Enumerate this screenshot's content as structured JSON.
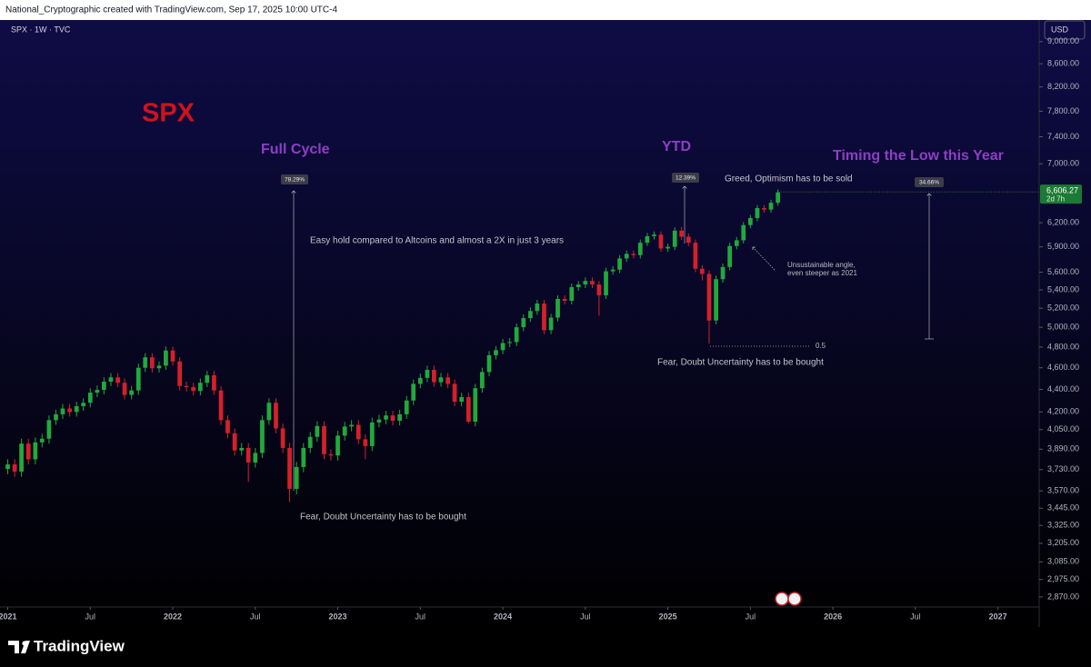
{
  "header": "National_Cryptographic created with TradingView.com, Sep 17, 2025 10:00 UTC-4",
  "brand": "TradingView",
  "chart_data": {
    "type": "candlestick",
    "symbol": "SPX · 1W · TVC",
    "currency": "USD",
    "title": "SPX",
    "annotations": {
      "full_cycle": "Full Cycle",
      "ytd": "YTD",
      "timing": "Timing the Low this Year",
      "full_cycle_pct": "78.29%",
      "ytd_pct": "12.39%",
      "timing_pct": "34.66%",
      "easy_hold": "Easy hold compared to Altcoins and almost a 2X in  just 3 years",
      "greed": "Greed, Optimism has to be sold",
      "unsustainable_1": "Unsustainable angle,",
      "unsustainable_2": "even steeper as 2021",
      "fear_2022": "Fear, Doubt Uncertainty has to be bought",
      "fear_2025": "Fear, Doubt Uncertainty has to be bought",
      "fib": "0.5"
    },
    "last_price": {
      "value": 6606.27,
      "label": "6,606.27"
    },
    "countdown": "2d 7h",
    "log_scale": true,
    "up_color": "#22a93c",
    "down_color": "#d3212b",
    "xlim": [
      2020.953,
      2027.25
    ],
    "xticks": [
      2021,
      {
        "value": 2021.5,
        "label": "Jul"
      },
      2022,
      {
        "value": 2022.5,
        "label": "Jul"
      },
      2023,
      {
        "value": 2023.5,
        "label": "Jul"
      },
      2024,
      {
        "value": 2024.5,
        "label": "Jul"
      },
      2025,
      {
        "value": 2025.5,
        "label": "Jul"
      },
      2026,
      {
        "value": 2026.5,
        "label": "Jul"
      },
      2027
    ],
    "ylim": [
      2811,
      9306
    ],
    "yticks": [
      {
        "value": 9000,
        "label": "9,000.00"
      },
      {
        "value": 8600,
        "label": "8,600.00"
      },
      {
        "value": 8200,
        "label": "8,200.00"
      },
      {
        "value": 7800,
        "label": "7,800.00"
      },
      {
        "value": 7400,
        "label": "7,400.00"
      },
      {
        "value": 7000,
        "label": "7,000.00"
      },
      {
        "value": 6200,
        "label": "6,200.00"
      },
      {
        "value": 5900,
        "label": "5,900.00"
      },
      {
        "value": 5600,
        "label": "5,600.00"
      },
      {
        "value": 5400,
        "label": "5,400.00"
      },
      {
        "value": 5200,
        "label": "5,200.00"
      },
      {
        "value": 5000,
        "label": "5,000.00"
      },
      {
        "value": 4800,
        "label": "4,800.00"
      },
      {
        "value": 4600,
        "label": "4,600.00"
      },
      {
        "value": 4400,
        "label": "4,400.00"
      },
      {
        "value": 4200,
        "label": "4,200.00"
      },
      {
        "value": 4050,
        "label": "4,050.00"
      },
      {
        "value": 3890,
        "label": "3,890.00"
      },
      {
        "value": 3730,
        "label": "3,730.00"
      },
      {
        "value": 3570,
        "label": "3,570.00"
      },
      {
        "value": 3445,
        "label": "3,445.00"
      },
      {
        "value": 3325,
        "label": "3,325.00"
      },
      {
        "value": 3205,
        "label": "3,205.00"
      },
      {
        "value": 3085,
        "label": "3,085.00"
      },
      {
        "value": 2975,
        "label": "2,975.00"
      },
      {
        "value": 2870,
        "label": "2,870.00"
      }
    ],
    "x": [
      2021,
      2021.042,
      2021.083,
      2021.125,
      2021.167,
      2021.208,
      2021.25,
      2021.292,
      2021.333,
      2021.375,
      2021.417,
      2021.458,
      2021.5,
      2021.542,
      2021.583,
      2021.625,
      2021.667,
      2021.708,
      2021.75,
      2021.792,
      2021.833,
      2021.875,
      2021.917,
      2021.958,
      2022,
      2022.042,
      2022.083,
      2022.125,
      2022.167,
      2022.208,
      2022.25,
      2022.292,
      2022.333,
      2022.375,
      2022.417,
      2022.458,
      2022.5,
      2022.542,
      2022.583,
      2022.625,
      2022.667,
      2022.708,
      2022.75,
      2022.792,
      2022.833,
      2022.875,
      2022.917,
      2022.958,
      2023,
      2023.042,
      2023.083,
      2023.125,
      2023.167,
      2023.208,
      2023.25,
      2023.292,
      2023.333,
      2023.375,
      2023.417,
      2023.458,
      2023.5,
      2023.542,
      2023.583,
      2023.625,
      2023.667,
      2023.708,
      2023.75,
      2023.792,
      2023.833,
      2023.875,
      2023.917,
      2023.958,
      2024,
      2024.042,
      2024.083,
      2024.125,
      2024.167,
      2024.208,
      2024.25,
      2024.292,
      2024.333,
      2024.375,
      2024.417,
      2024.458,
      2024.5,
      2024.542,
      2024.583,
      2024.625,
      2024.667,
      2024.708,
      2024.75,
      2024.792,
      2024.833,
      2024.875,
      2024.917,
      2024.958,
      2025,
      2025.042,
      2025.083,
      2025.125,
      2025.167,
      2025.208,
      2025.25,
      2025.292,
      2025.333,
      2025.375,
      2025.417,
      2025.458,
      2025.5,
      2025.542,
      2025.583,
      2025.625,
      2025.667
    ],
    "open": [
      3735,
      3770,
      3715,
      3935,
      3810,
      3945,
      3975,
      4130,
      4180,
      4230,
      4200,
      4250,
      4280,
      4370,
      4395,
      4470,
      4510,
      4460,
      4350,
      4390,
      4600,
      4700,
      4595,
      4620,
      4766,
      4660,
      4430,
      4420,
      4385,
      4460,
      4530,
      4390,
      4130,
      4020,
      3880,
      3900,
      3785,
      3860,
      4130,
      4280,
      4060,
      3900,
      3585,
      3750,
      3900,
      3990,
      4080,
      3850,
      3840,
      4000,
      4076,
      4090,
      3970,
      3915,
      4110,
      4135,
      4170,
      4125,
      4180,
      4300,
      4450,
      4505,
      4580,
      4465,
      4510,
      4450,
      4290,
      4330,
      4117,
      4410,
      4560,
      4720,
      4770,
      4840,
      4850,
      5000,
      5095,
      5170,
      5250,
      4970,
      5100,
      5300,
      5280,
      5430,
      5460,
      5500,
      5460,
      5340,
      5610,
      5630,
      5760,
      5815,
      5800,
      5950,
      6030,
      6050,
      5880,
      5900,
      6100,
      6025,
      5950,
      5640,
      5580,
      5070,
      5520,
      5660,
      5910,
      5980,
      6170,
      6260,
      6390,
      6370,
      6460
    ],
    "high": [
      3810,
      3810,
      3975,
      3975,
      3985,
      4015,
      4170,
      4220,
      4270,
      4270,
      4290,
      4320,
      4410,
      4435,
      4510,
      4550,
      4550,
      4500,
      4430,
      4640,
      4740,
      4740,
      4660,
      4806,
      4806,
      4700,
      4470,
      4460,
      4500,
      4570,
      4570,
      4430,
      4170,
      4060,
      3940,
      3940,
      3900,
      4170,
      4320,
      4320,
      4100,
      3940,
      3790,
      3940,
      4030,
      4120,
      4120,
      3890,
      4040,
      4116,
      4130,
      4130,
      4010,
      4150,
      4175,
      4210,
      4210,
      4220,
      4340,
      4490,
      4545,
      4620,
      4620,
      4550,
      4550,
      4490,
      4370,
      4370,
      4450,
      4600,
      4760,
      4810,
      4880,
      4890,
      5040,
      5135,
      5210,
      5290,
      5290,
      5140,
      5340,
      5340,
      5470,
      5500,
      5540,
      5540,
      5500,
      5650,
      5670,
      5800,
      5855,
      5855,
      5990,
      6070,
      6090,
      6090,
      5940,
      6140,
      6147,
      6065,
      5990,
      5680,
      5620,
      5560,
      5700,
      5950,
      6020,
      6210,
      6300,
      6430,
      6430,
      6500,
      6640
    ],
    "low": [
      3695,
      3675,
      3675,
      3770,
      3770,
      3905,
      3935,
      4090,
      4140,
      4160,
      4160,
      4210,
      4240,
      4330,
      4355,
      4430,
      4420,
      4310,
      4310,
      4350,
      4560,
      4555,
      4555,
      4580,
      4620,
      4390,
      4380,
      4345,
      4345,
      4420,
      4350,
      4090,
      3980,
      3840,
      3840,
      3637,
      3745,
      3820,
      4090,
      4020,
      3860,
      3491,
      3545,
      3710,
      3860,
      3950,
      3810,
      3800,
      3800,
      3960,
      4036,
      3930,
      3810,
      3875,
      4070,
      4095,
      4085,
      4085,
      4140,
      4260,
      4410,
      4465,
      4425,
      4425,
      4410,
      4250,
      4250,
      4103,
      4077,
      4370,
      4520,
      4680,
      4730,
      4800,
      4810,
      4960,
      5055,
      5130,
      4930,
      4930,
      5060,
      5240,
      5240,
      5390,
      5420,
      5420,
      5120,
      5300,
      5570,
      5590,
      5720,
      5760,
      5760,
      5910,
      5990,
      5840,
      5840,
      5860,
      5985,
      5910,
      5600,
      5505,
      4835,
      5030,
      5480,
      5620,
      5870,
      5940,
      6130,
      6220,
      6330,
      6330,
      6420
    ],
    "close": [
      3770,
      3715,
      3935,
      3810,
      3945,
      3975,
      4130,
      4180,
      4230,
      4200,
      4250,
      4280,
      4370,
      4395,
      4470,
      4510,
      4460,
      4350,
      4390,
      4600,
      4700,
      4595,
      4620,
      4766,
      4660,
      4430,
      4420,
      4385,
      4460,
      4530,
      4390,
      4130,
      4020,
      3880,
      3900,
      3785,
      3860,
      4130,
      4280,
      4060,
      3900,
      3585,
      3750,
      3900,
      3990,
      4080,
      3850,
      3840,
      4000,
      4076,
      4090,
      3970,
      3915,
      4110,
      4135,
      4170,
      4125,
      4180,
      4300,
      4450,
      4505,
      4580,
      4465,
      4510,
      4450,
      4290,
      4330,
      4117,
      4410,
      4560,
      4720,
      4770,
      4840,
      4850,
      5000,
      5095,
      5170,
      5250,
      4970,
      5100,
      5300,
      5280,
      5430,
      5460,
      5500,
      5460,
      5340,
      5610,
      5630,
      5760,
      5815,
      5800,
      5950,
      6030,
      6050,
      5880,
      5900,
      6100,
      6025,
      5950,
      5640,
      5580,
      5070,
      5520,
      5660,
      5910,
      5980,
      6170,
      6260,
      6390,
      6370,
      6460,
      6600
    ]
  }
}
